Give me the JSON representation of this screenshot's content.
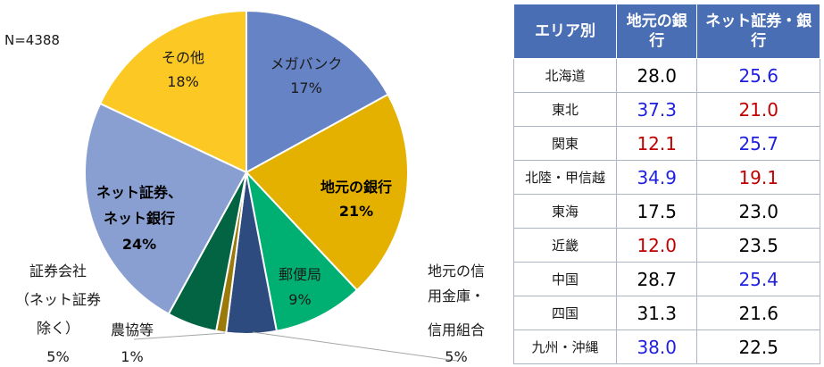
{
  "chart_data": {
    "type": "pie",
    "sample": "N=4388",
    "slices": [
      {
        "name": "メガバンク",
        "value": 17,
        "pct_label": "17%",
        "color": "#6683c5"
      },
      {
        "name": "地元の銀行",
        "value": 21,
        "pct_label": "21%",
        "color": "#e4b100"
      },
      {
        "name": "郵便局",
        "value": 9,
        "pct_label": "9%",
        "color": "#00b073"
      },
      {
        "name": "地元の信用金庫・信用組合",
        "value": 5,
        "pct_label": "5%",
        "color": "#2e4b80"
      },
      {
        "name": "農協等",
        "value": 1,
        "pct_label": "1%",
        "color": "#9b7a0c"
      },
      {
        "name": "証券会社（ネット証券除く）",
        "value": 5,
        "pct_label": "5%",
        "color": "#036443"
      },
      {
        "name": "ネット証券、ネット銀行",
        "value": 24,
        "pct_label": "24%",
        "color": "#899fd1"
      },
      {
        "name": "その他",
        "value": 18,
        "pct_label": "18%",
        "color": "#fcc824"
      }
    ]
  },
  "labels": {
    "mega_1": "メガバンク",
    "mega_2": "17%",
    "local_1": "地元の銀行",
    "local_2": "21%",
    "post_1": "郵便局",
    "post_2": "9%",
    "shinkin_1": "地元の信",
    "shinkin_2": "用金庫・",
    "shinkin_3": "信用組合",
    "shinkin_4": "5%",
    "nokyo_1": "農協等",
    "nokyo_2": "1%",
    "sec_1": "証券会社",
    "sec_2": "（ネット証券",
    "sec_3": "除く）",
    "sec_4": "5%",
    "net_1": "ネット証券、",
    "net_2": "ネット銀行",
    "net_3": "24%",
    "other_1": "その他",
    "other_2": "18%"
  },
  "table": {
    "headers": [
      "エリア別",
      "地元の銀行",
      "ネット証券・銀行"
    ],
    "rows": [
      {
        "area": "北海道",
        "local": "28.0",
        "net": "25.6",
        "local_color": "#000000",
        "net_color": "#1f1fe0"
      },
      {
        "area": "東北",
        "local": "37.3",
        "net": "21.0",
        "local_color": "#1f1fe0",
        "net_color": "#c00000"
      },
      {
        "area": "関東",
        "local": "12.1",
        "net": "25.7",
        "local_color": "#c00000",
        "net_color": "#1f1fe0"
      },
      {
        "area": "北陸・甲信越",
        "local": "34.9",
        "net": "19.1",
        "local_color": "#1f1fe0",
        "net_color": "#c00000"
      },
      {
        "area": "東海",
        "local": "17.5",
        "net": "23.0",
        "local_color": "#000000",
        "net_color": "#000000"
      },
      {
        "area": "近畿",
        "local": "12.0",
        "net": "23.5",
        "local_color": "#c00000",
        "net_color": "#000000"
      },
      {
        "area": "中国",
        "local": "28.7",
        "net": "25.4",
        "local_color": "#000000",
        "net_color": "#1f1fe0"
      },
      {
        "area": "四国",
        "local": "31.3",
        "net": "21.6",
        "local_color": "#000000",
        "net_color": "#000000"
      },
      {
        "area": "九州・沖縄",
        "local": "38.0",
        "net": "22.5",
        "local_color": "#1f1fe0",
        "net_color": "#000000"
      }
    ]
  }
}
